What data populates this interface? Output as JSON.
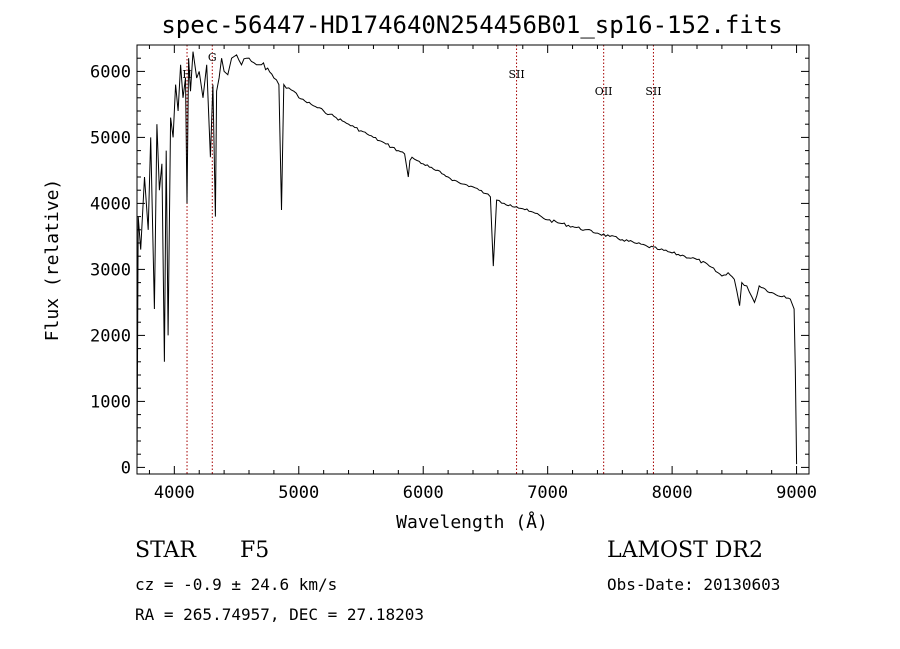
{
  "chart_data": {
    "type": "line",
    "title": "spec-56447-HD174640N254456B01_sp16-152.fits",
    "xlabel": "Wavelength (Å)",
    "ylabel": "Flux (relative)",
    "xlim": [
      3700,
      9100
    ],
    "ylim": [
      -100,
      6400
    ],
    "x_ticks": [
      4000,
      5000,
      6000,
      7000,
      8000,
      9000
    ],
    "y_ticks": [
      0,
      1000,
      2000,
      3000,
      4000,
      5000,
      6000
    ],
    "x_tick_labels": [
      "4000",
      "5000",
      "6000",
      "7000",
      "8000",
      "9000"
    ],
    "y_tick_labels": [
      "0",
      "1000",
      "2000",
      "3000",
      "4000",
      "5000",
      "6000"
    ],
    "grid": false,
    "series": [
      {
        "name": "flux",
        "x": [
          3700,
          3710,
          3730,
          3760,
          3790,
          3810,
          3840,
          3860,
          3880,
          3900,
          3920,
          3935,
          3950,
          3970,
          3990,
          4010,
          4030,
          4050,
          4070,
          4090,
          4102,
          4115,
          4130,
          4150,
          4180,
          4200,
          4230,
          4260,
          4290,
          4310,
          4330,
          4340,
          4360,
          4380,
          4400,
          4430,
          4460,
          4500,
          4540,
          4580,
          4620,
          4660,
          4700,
          4750,
          4800,
          4840,
          4861,
          4880,
          4920,
          4960,
          5000,
          5050,
          5100,
          5150,
          5200,
          5250,
          5300,
          5350,
          5400,
          5450,
          5500,
          5550,
          5600,
          5650,
          5700,
          5750,
          5800,
          5850,
          5880,
          5893,
          5910,
          5950,
          6000,
          6050,
          6100,
          6150,
          6200,
          6250,
          6300,
          6350,
          6400,
          6450,
          6500,
          6540,
          6563,
          6590,
          6650,
          6700,
          6750,
          6800,
          6850,
          6900,
          6950,
          7000,
          7100,
          7200,
          7300,
          7400,
          7500,
          7600,
          7700,
          7800,
          7900,
          8000,
          8100,
          8200,
          8300,
          8400,
          8450,
          8500,
          8542,
          8560,
          8600,
          8662,
          8700,
          8750,
          8800,
          8850,
          8900,
          8950,
          8980,
          8990,
          9000
        ],
        "y": [
          0,
          3800,
          3300,
          4400,
          3600,
          5000,
          2400,
          5200,
          4200,
          4600,
          1600,
          4800,
          2000,
          5300,
          5000,
          5800,
          5400,
          6100,
          5600,
          5900,
          4000,
          6200,
          5700,
          6300,
          5900,
          6000,
          5600,
          6100,
          4700,
          5800,
          3800,
          5700,
          5900,
          6200,
          6000,
          5950,
          6200,
          6250,
          6100,
          6200,
          6150,
          6100,
          6100,
          6050,
          5900,
          5800,
          3900,
          5800,
          5750,
          5700,
          5600,
          5550,
          5500,
          5450,
          5400,
          5350,
          5300,
          5250,
          5200,
          5150,
          5100,
          5050,
          5000,
          4950,
          4900,
          4850,
          4800,
          4750,
          4400,
          4650,
          4700,
          4650,
          4600,
          4550,
          4500,
          4450,
          4400,
          4350,
          4300,
          4280,
          4250,
          4200,
          4150,
          4100,
          3050,
          4050,
          4000,
          3980,
          3950,
          3920,
          3880,
          3850,
          3800,
          3750,
          3700,
          3650,
          3600,
          3550,
          3500,
          3450,
          3400,
          3350,
          3300,
          3250,
          3200,
          3150,
          3050,
          2900,
          2950,
          2850,
          2450,
          2800,
          2750,
          2500,
          2750,
          2700,
          2650,
          2600,
          2600,
          2550,
          2400,
          1500,
          50
        ]
      }
    ],
    "line_markers": [
      {
        "label": "H",
        "x": 4102
      },
      {
        "label": "G",
        "x": 4305
      },
      {
        "label": "SII",
        "x": 6750
      },
      {
        "label": "OII",
        "x": 7450
      },
      {
        "label": "SII",
        "x": 7850
      }
    ]
  },
  "info": {
    "class_label": "STAR",
    "subclass": "F5",
    "survey": "LAMOST DR2",
    "cz_text": "cz = -0.9 ± 24.6 km/s",
    "obs_date": "Obs-Date: 20130603",
    "radec": "RA = 265.74957, DEC =  27.18203"
  },
  "colors": {
    "spectrum": "#000000",
    "marker_line": "#a40000",
    "axes": "#000000",
    "background": "#ffffff"
  }
}
